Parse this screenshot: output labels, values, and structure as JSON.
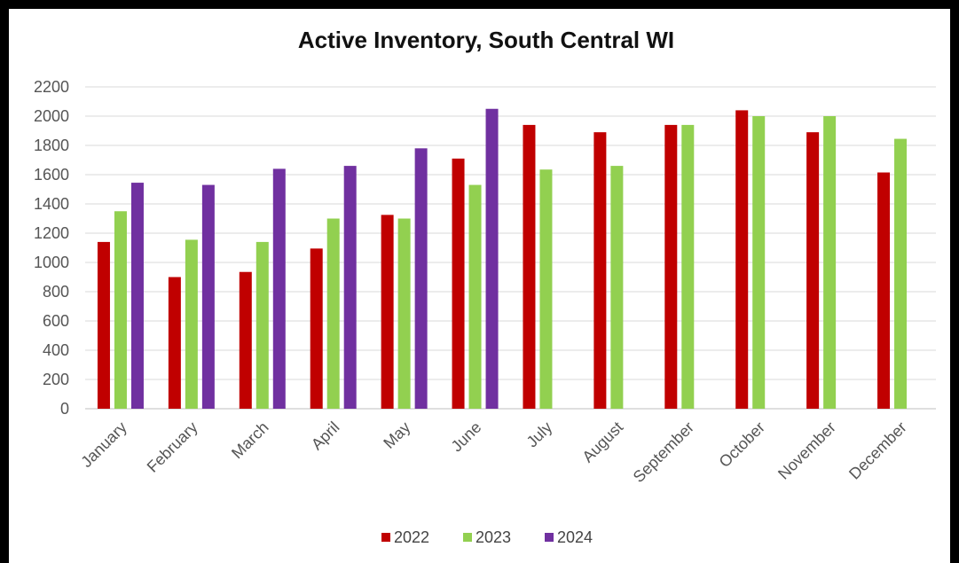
{
  "chart_data": {
    "type": "bar",
    "title": "Active Inventory, South Central WI",
    "xlabel": "",
    "ylabel": "",
    "ylim": [
      0,
      2200
    ],
    "yticks": [
      0,
      200,
      400,
      600,
      800,
      1000,
      1200,
      1400,
      1600,
      1800,
      2000,
      2200
    ],
    "grid": true,
    "legend": "bottom",
    "categories": [
      "January",
      "February",
      "March",
      "April",
      "May",
      "June",
      "July",
      "August",
      "September",
      "October",
      "November",
      "December"
    ],
    "series": [
      {
        "name": "2022",
        "color": "#c00000",
        "values": [
          1140,
          900,
          935,
          1095,
          1325,
          1710,
          1940,
          1890,
          1940,
          2040,
          1890,
          1615
        ]
      },
      {
        "name": "2023",
        "color": "#92d050",
        "values": [
          1350,
          1155,
          1140,
          1300,
          1300,
          1530,
          1635,
          1660,
          1940,
          2000,
          2000,
          1845
        ]
      },
      {
        "name": "2024",
        "color": "#7030a0",
        "values": [
          1545,
          1530,
          1640,
          1660,
          1780,
          2050,
          null,
          null,
          null,
          null,
          null,
          null
        ]
      }
    ]
  }
}
